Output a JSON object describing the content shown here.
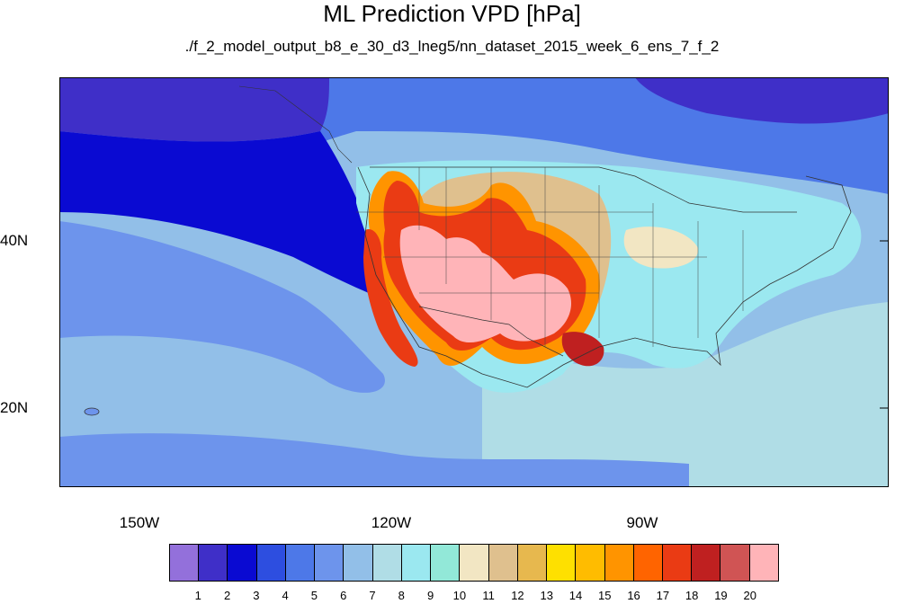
{
  "header": {
    "title": "ML Prediction VPD [hPa]",
    "subtitle": "./f_2_model_output_b8_e_30_d3_lneg5/nn_dataset_2015_week_6_ens_7_f_2"
  },
  "axes": {
    "lat_labels": [
      "40N",
      "20N"
    ],
    "lon_labels": [
      "150W",
      "120W",
      "90W"
    ]
  },
  "colorbar": {
    "labels": [
      "1",
      "2",
      "3",
      "4",
      "5",
      "6",
      "7",
      "8",
      "9",
      "10",
      "11",
      "12",
      "13",
      "14",
      "15",
      "16",
      "17",
      "18",
      "19",
      "20"
    ],
    "colors": [
      "#9370db",
      "#3f2fc8",
      "#0a0ad2",
      "#2d4ee0",
      "#4d78e8",
      "#6d94ec",
      "#92bfe8",
      "#b0dde6",
      "#9be8f0",
      "#92e8d8",
      "#f2e6c3",
      "#dfc08e",
      "#e7b84e",
      "#fee000",
      "#ffbc00",
      "#ff9400",
      "#ff6400",
      "#ea3b14",
      "#bf2020",
      "#d05454",
      "#ffb4b8"
    ]
  }
}
